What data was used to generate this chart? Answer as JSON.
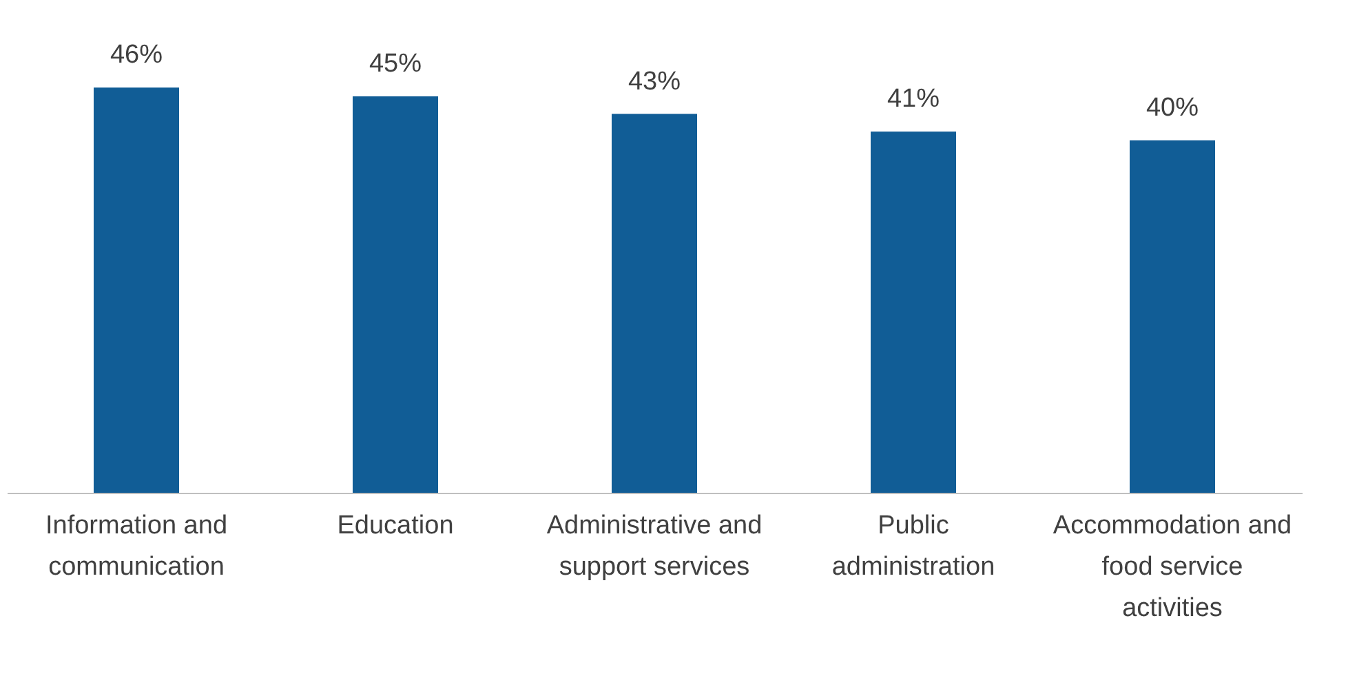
{
  "chart_data": {
    "type": "bar",
    "categories": [
      "Information and communication",
      "Education",
      "Administrative and support services",
      "Public administration",
      "Accommodation and food service activities"
    ],
    "values": [
      46,
      45,
      43,
      41,
      40
    ],
    "color": "#115d96",
    "value_labels": [
      "46%",
      "45%",
      "43%",
      "41%",
      "40%"
    ],
    "grid": false
  }
}
